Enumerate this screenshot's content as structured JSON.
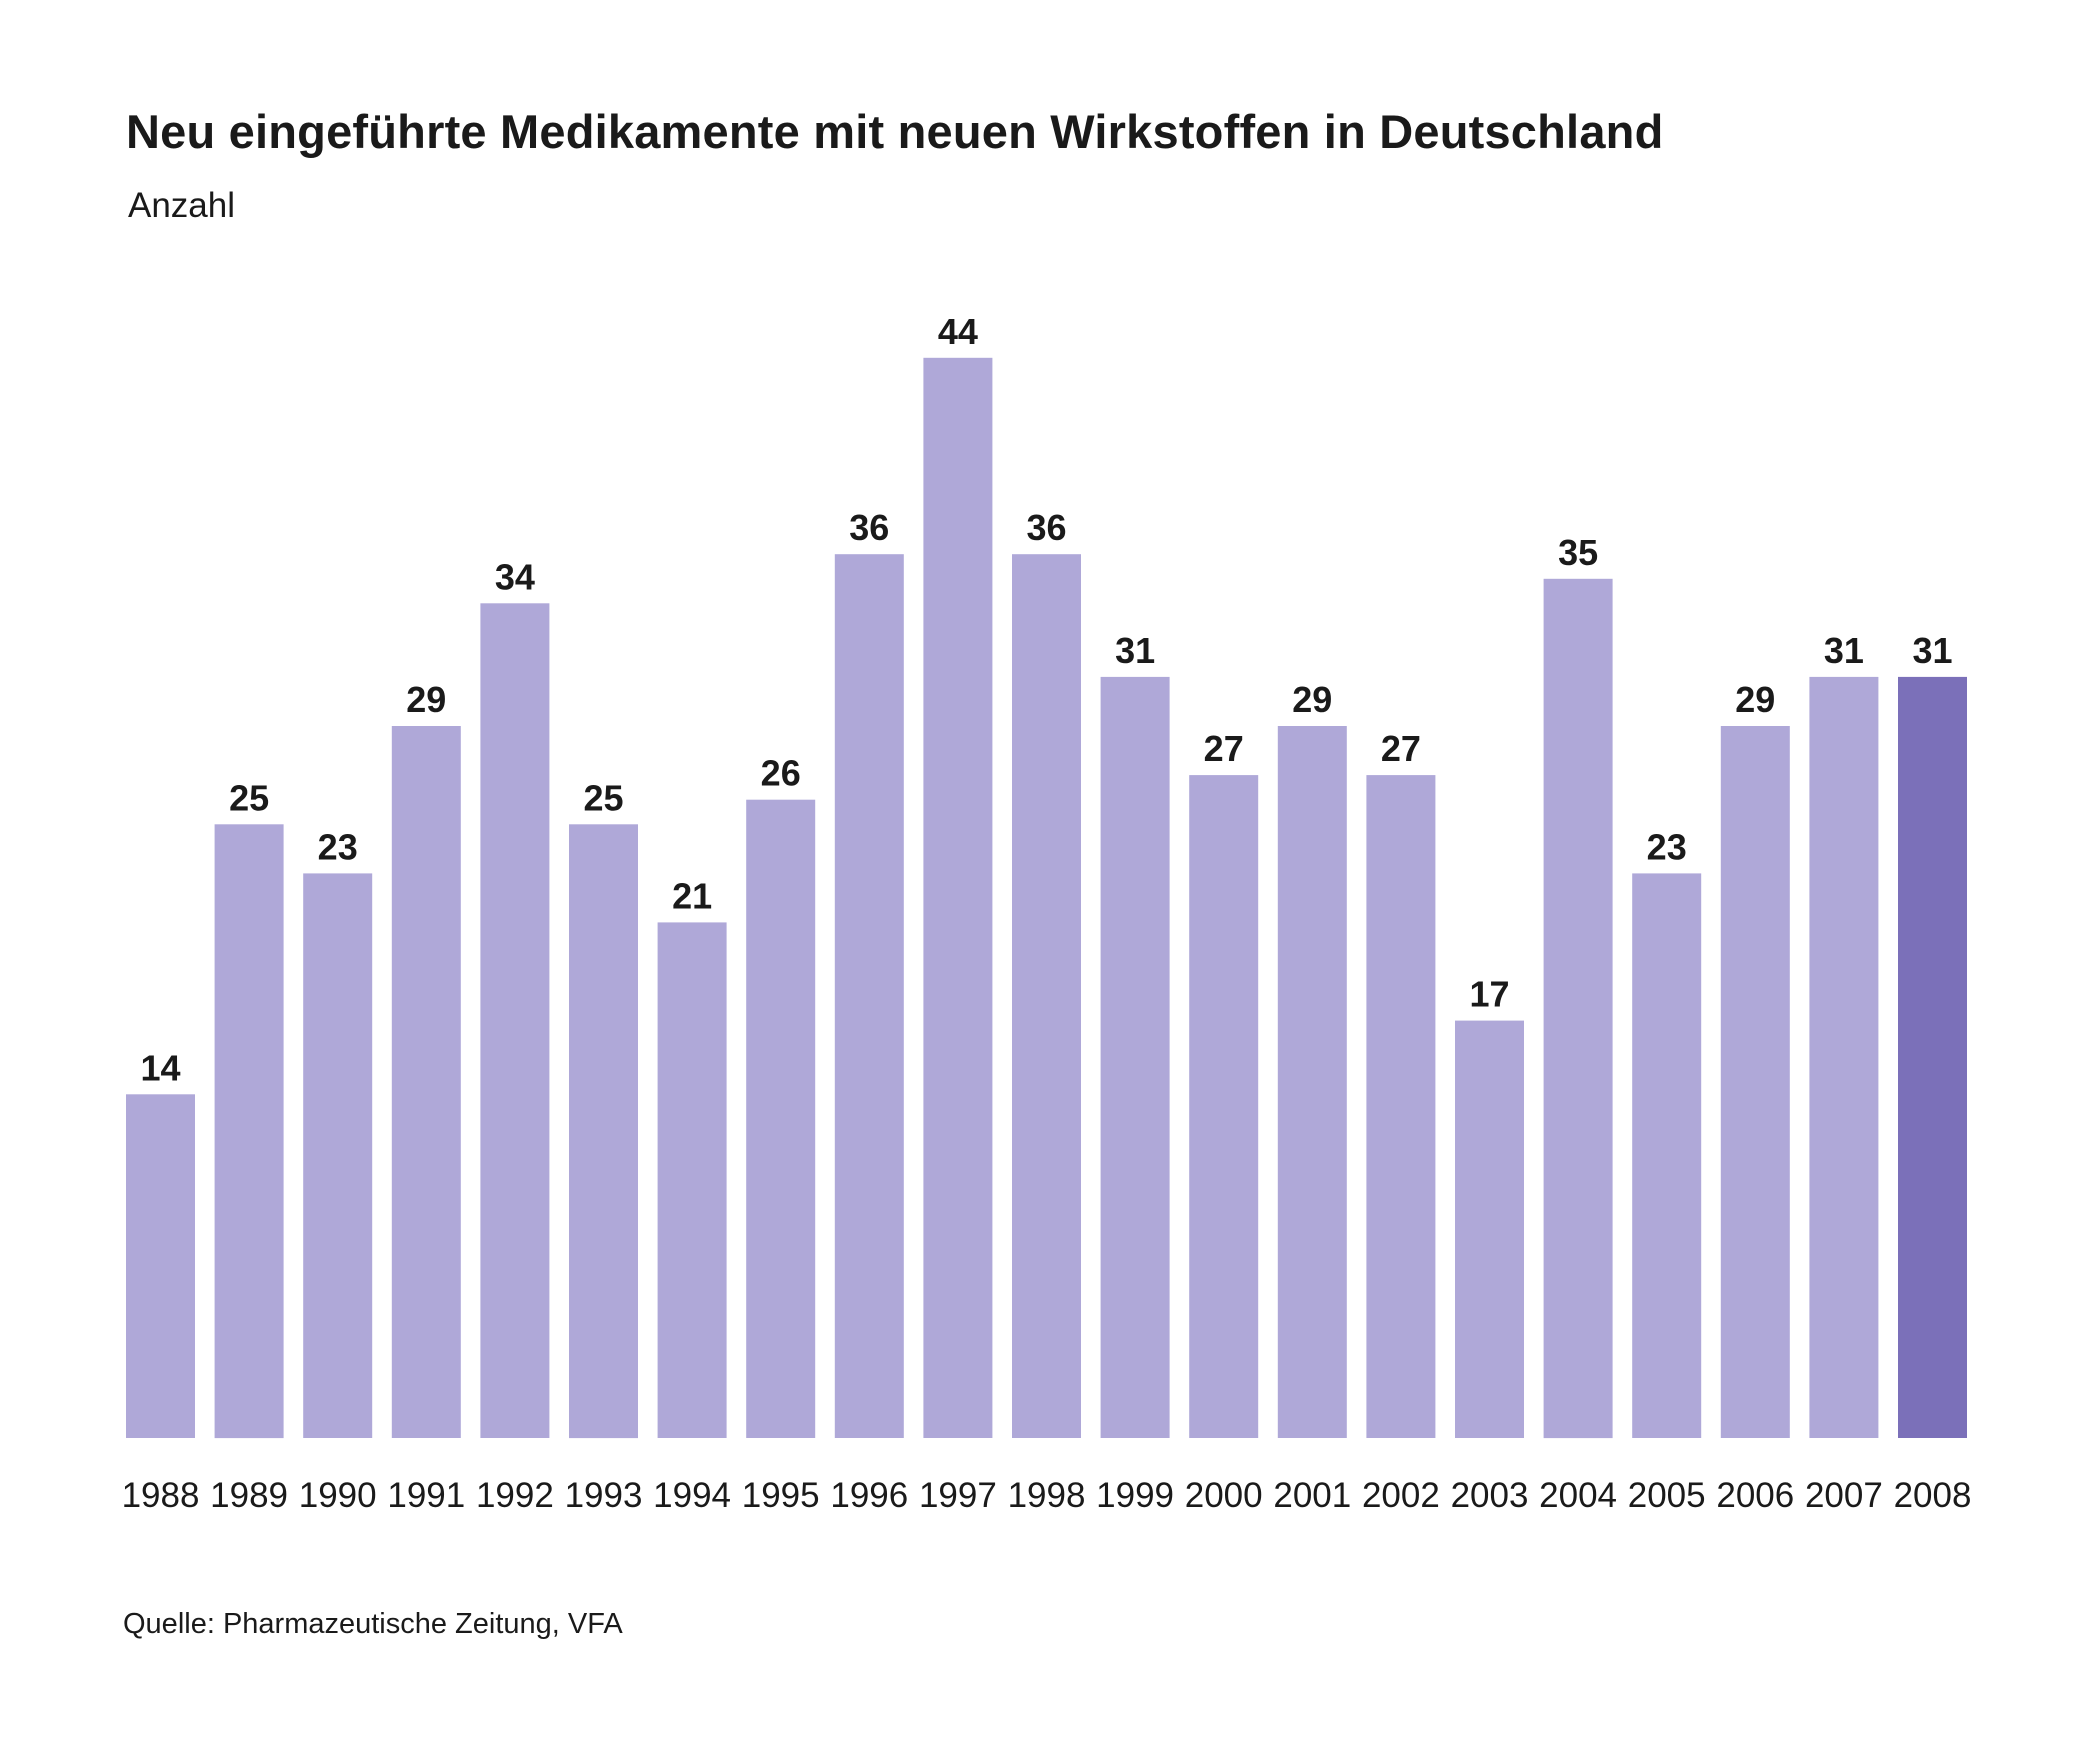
{
  "chart_data": {
    "type": "bar",
    "title": "Neu eingeführte Medikamente mit neuen Wirkstoffen in Deutschland",
    "subtitle": "Anzahl",
    "xlabel": "",
    "ylabel": "",
    "categories": [
      "1988",
      "1989",
      "1990",
      "1991",
      "1992",
      "1993",
      "1994",
      "1995",
      "1996",
      "1997",
      "1998",
      "1999",
      "2000",
      "2001",
      "2002",
      "2003",
      "2004",
      "2005",
      "2006",
      "2007",
      "2008"
    ],
    "values": [
      14,
      25,
      23,
      29,
      34,
      25,
      21,
      26,
      36,
      44,
      36,
      31,
      27,
      29,
      27,
      17,
      35,
      23,
      29,
      31,
      31
    ],
    "data_labels": [
      "14",
      "25",
      "23",
      "29",
      "34",
      "25",
      "21",
      "26",
      "36",
      "44",
      "36",
      "31",
      "27",
      "29",
      "27",
      "17",
      "35",
      "23",
      "29",
      "31",
      "31"
    ],
    "ylim": [
      0,
      44
    ],
    "grid": false,
    "legend": "none",
    "colors": {
      "bar": "#afa8d8",
      "highlight_bar": "#7b70b9",
      "highlight_category": "2008",
      "text": "#1a1a1a"
    },
    "source": "Quelle: Pharmazeutische Zeitung, VFA"
  }
}
